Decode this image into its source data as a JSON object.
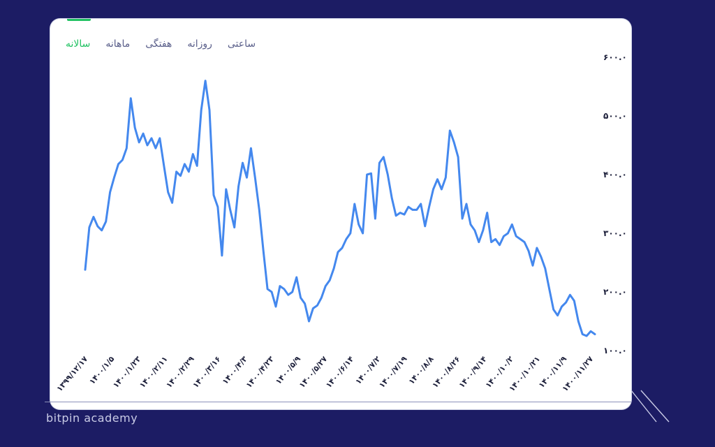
{
  "brand": "bitpin academy",
  "tabs": [
    {
      "label": "ساعتی",
      "active": false
    },
    {
      "label": "روزانه",
      "active": false
    },
    {
      "label": "هفتگی",
      "active": false
    },
    {
      "label": "ماهانه",
      "active": false
    },
    {
      "label": "سالانه",
      "active": true
    }
  ],
  "colors": {
    "background": "#1c1c64",
    "line": "#4488ee",
    "active_tab": "#21c262",
    "tab_text": "#5a5f8a"
  },
  "chart_data": {
    "type": "line",
    "title": "",
    "xlabel": "",
    "ylabel": "",
    "ylim": [
      100,
      620
    ],
    "yticks": [
      100,
      200,
      300,
      400,
      500,
      600
    ],
    "ytick_labels": [
      "۱۰۰.۰",
      "۲۰۰.۰",
      "۳۰۰.۰",
      "۴۰۰.۰",
      "۵۰۰.۰",
      "۶۰۰.۰"
    ],
    "xtick_labels": [
      "۱۳۹۹/۱۲/۱۷",
      "۱۴۰۰/۱/۵",
      "۱۴۰۰/۱/۲۳",
      "۱۴۰۰/۲/۱۱",
      "۱۴۰۰/۲/۲۹",
      "۱۴۰۰/۳/۱۶",
      "۱۴۰۰/۴/۳",
      "۱۴۰۰/۴/۲۳",
      "۱۴۰۰/۵/۹",
      "۱۴۰۰/۵/۲۷",
      "۱۴۰۰/۶/۱۴",
      "۱۴۰۰/۷/۲",
      "۱۴۰۰/۷/۱۹",
      "۱۴۰۰/۸/۸",
      "۱۴۰۰/۸/۲۶",
      "۱۴۰۰/۹/۱۴",
      "۱۴۰۰/۱۰/۲",
      "۱۴۰۰/۱۰/۲۱",
      "۱۴۰۰/۱۱/۹",
      "۱۴۰۰/۱۱/۲۷"
    ],
    "grid": false,
    "y_axis_side": "right",
    "series": [
      {
        "values": [
          238,
          310,
          328,
          312,
          305,
          320,
          370,
          395,
          418,
          425,
          445,
          530,
          480,
          455,
          470,
          450,
          462,
          445,
          462,
          415,
          370,
          352,
          405,
          398,
          418,
          405,
          435,
          415,
          510,
          560,
          510,
          365,
          345,
          262,
          375,
          340,
          310,
          380,
          420,
          395,
          445,
          395,
          340,
          270,
          205,
          200,
          175,
          210,
          205,
          195,
          200,
          225,
          190,
          180,
          150,
          172,
          177,
          190,
          210,
          220,
          240,
          268,
          275,
          290,
          300,
          350,
          315,
          300,
          400,
          402,
          325,
          420,
          430,
          400,
          360,
          330,
          335,
          332,
          345,
          340,
          340,
          350,
          312,
          345,
          375,
          392,
          375,
          395,
          475,
          455,
          430,
          325,
          350,
          315,
          305,
          285,
          305,
          335,
          285,
          290,
          280,
          295,
          300,
          315,
          295,
          290,
          285,
          270,
          245,
          275,
          260,
          240,
          205,
          170,
          160,
          175,
          182,
          195,
          185,
          150,
          128,
          125,
          133,
          128
        ]
      }
    ]
  }
}
